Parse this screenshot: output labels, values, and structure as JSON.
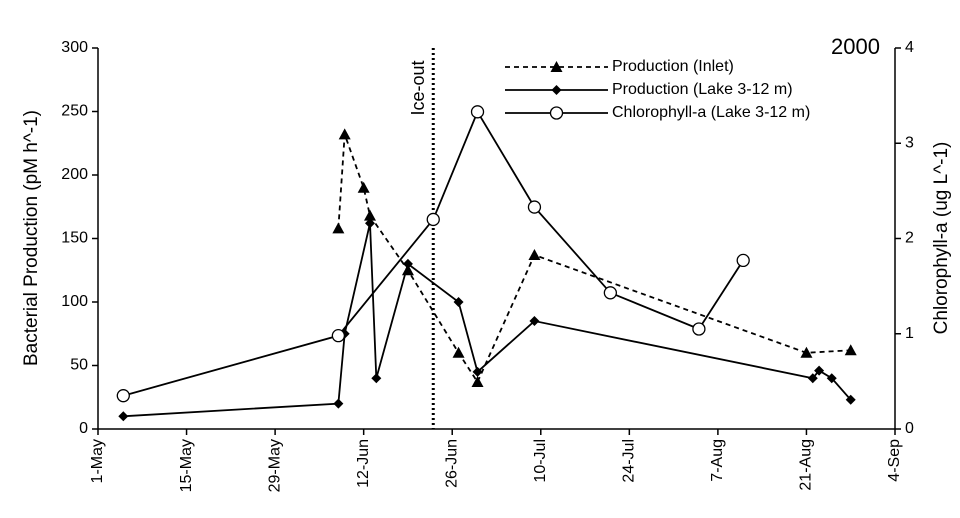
{
  "chart_data": {
    "type": "line",
    "annotation": "2000",
    "ice_out": {
      "label": "Ice-out",
      "x": 53
    },
    "ylabel": "Bacterial Production  (pM h^-1)",
    "y2label": "Chlorophyll-a (ug L^-1)",
    "xlim": [
      0,
      126
    ],
    "xticks": [
      {
        "value": 0,
        "label": "1-May"
      },
      {
        "value": 14,
        "label": "15-May"
      },
      {
        "value": 28,
        "label": "29-May"
      },
      {
        "value": 42,
        "label": "12-Jun"
      },
      {
        "value": 56,
        "label": "26-Jun"
      },
      {
        "value": 70,
        "label": "10-Jul"
      },
      {
        "value": 84,
        "label": "24-Jul"
      },
      {
        "value": 98,
        "label": "7-Aug"
      },
      {
        "value": 112,
        "label": "21-Aug"
      },
      {
        "value": 126,
        "label": "4-Sep"
      }
    ],
    "ylim": [
      0,
      300
    ],
    "yticks": [
      0,
      50,
      100,
      150,
      200,
      250,
      300
    ],
    "y2lim": [
      0,
      4
    ],
    "y2ticks": [
      0,
      1,
      2,
      3,
      4
    ],
    "series": [
      {
        "name": "Production (Inlet)",
        "color": "#000000",
        "dash": true,
        "marker": "triangle",
        "x": [
          38,
          39,
          42,
          43,
          49,
          57,
          60,
          69,
          112,
          119
        ],
        "values": [
          158,
          232,
          190,
          168,
          125,
          60,
          37,
          137,
          60,
          62
        ]
      },
      {
        "name": "Production (Lake 3-12 m)",
        "color": "#000000",
        "dash": false,
        "marker": "diamond",
        "x": [
          4,
          38,
          39,
          43,
          44,
          49,
          57,
          60,
          69,
          113,
          114,
          116,
          119
        ],
        "values": [
          10,
          20,
          75,
          162,
          40,
          130,
          100,
          45,
          85,
          40,
          46,
          40,
          23
        ]
      },
      {
        "name": "Chlorophyll-a (Lake 3-12 m)",
        "color": "#000000",
        "dash": false,
        "marker": "circle",
        "axis": "y2",
        "x": [
          4,
          38,
          53,
          60,
          69,
          81,
          95,
          102
        ],
        "values": [
          0.35,
          0.98,
          2.2,
          3.33,
          2.33,
          1.43,
          1.05,
          1.77
        ]
      }
    ]
  }
}
